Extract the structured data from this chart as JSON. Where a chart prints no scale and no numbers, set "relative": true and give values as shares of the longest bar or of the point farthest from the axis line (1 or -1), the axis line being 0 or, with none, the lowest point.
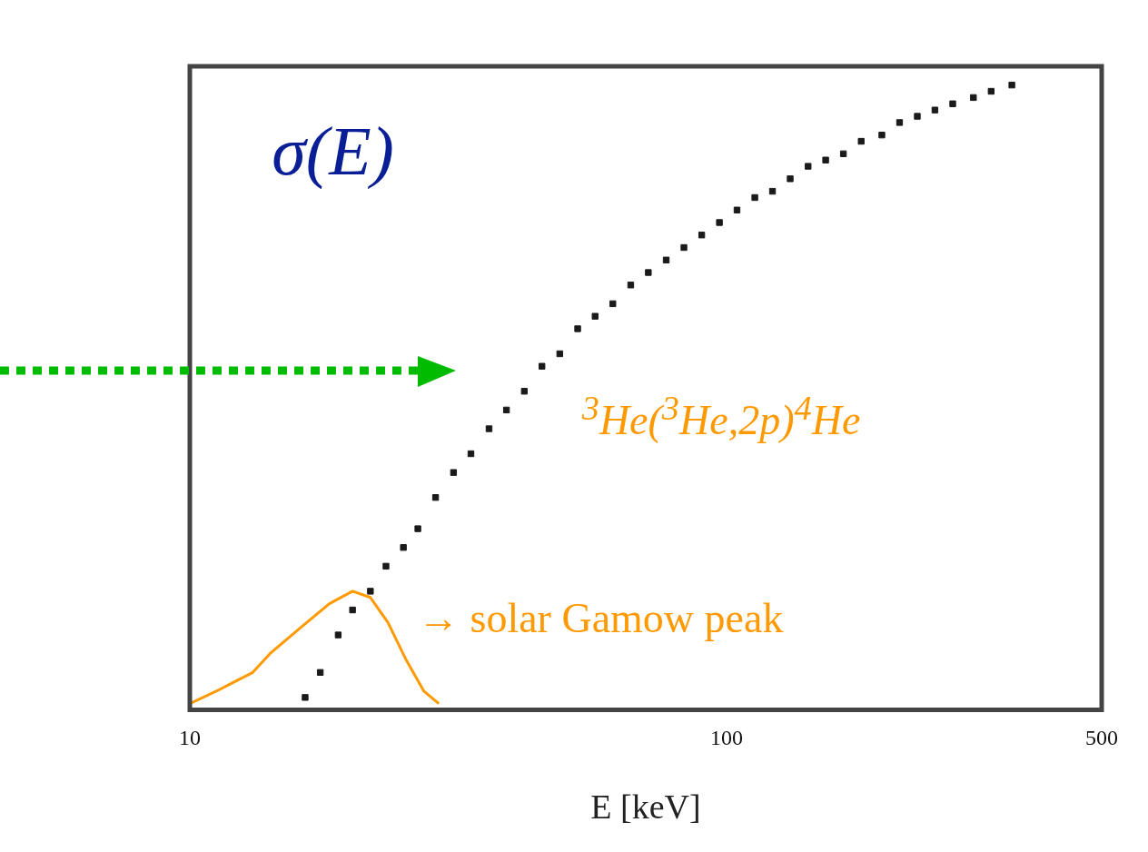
{
  "chart_data": {
    "type": "scatter",
    "relative": true,
    "log": "x",
    "xlabel": "E [keV]",
    "xlim": [
      10,
      500
    ],
    "xticks": [
      10,
      100,
      500
    ],
    "marker": "square",
    "grid": false,
    "legend": false,
    "tick_labels": "x",
    "annotations": [
      "σ(E)",
      "$^{3}$He($^{3}$He,2p)$^{4}$He",
      "→ solar Gamow peak"
    ],
    "series": [
      {
        "color": "#1a1a1a",
        "x": [
          16.4,
          17.5,
          18.9,
          20.1,
          21.7,
          23.2,
          25.0,
          26.6,
          28.7,
          31.0,
          33.4,
          36.1,
          38.9,
          42.0,
          45.3,
          48.9,
          52.8,
          56.9,
          61.4,
          66.3,
          71.5,
          77.2,
          83.3,
          89.9,
          97.0,
          104.6,
          112.9,
          121.8,
          131.4,
          141.9,
          153.0,
          165.1,
          178.2,
          194.7,
          210.1,
          226.7,
          244.5,
          263.9,
          288.4,
          311.2,
          340.1
        ],
        "values": [
          0.02,
          0.06,
          0.12,
          0.16,
          0.19,
          0.23,
          0.26,
          0.29,
          0.34,
          0.38,
          0.41,
          0.45,
          0.48,
          0.51,
          0.55,
          0.57,
          0.61,
          0.63,
          0.65,
          0.68,
          0.7,
          0.72,
          0.74,
          0.76,
          0.78,
          0.8,
          0.82,
          0.83,
          0.85,
          0.87,
          0.88,
          0.89,
          0.91,
          0.92,
          0.94,
          0.95,
          0.96,
          0.97,
          0.98,
          0.99,
          1.0
        ]
      },
      {
        "type": "line",
        "color": "#ff9900",
        "marker": "none",
        "x": [
          10,
          11.2,
          13.1,
          14.1,
          16.0,
          18.2,
          20.1,
          21.7,
          23.4,
          25.3,
          27.3,
          29.1
        ],
        "values": [
          0.01,
          0.03,
          0.06,
          0.09,
          0.13,
          0.17,
          0.19,
          0.18,
          0.14,
          0.08,
          0.03,
          0.01
        ]
      }
    ]
  }
}
